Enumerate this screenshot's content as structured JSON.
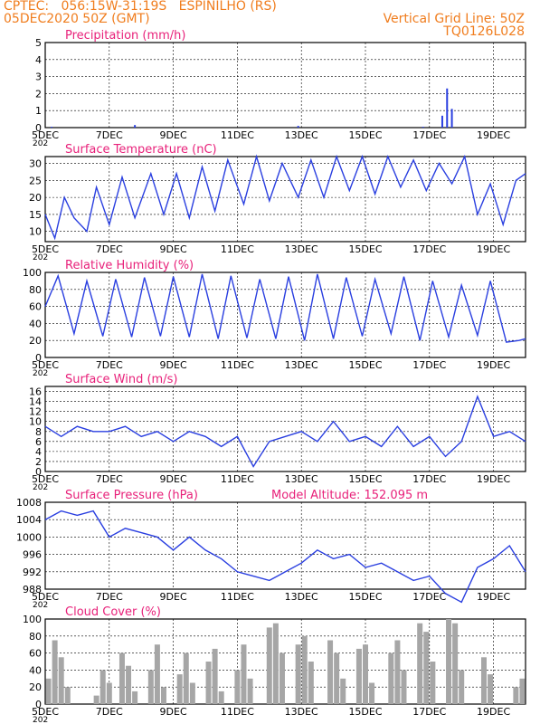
{
  "header": {
    "line1": "CPTEC:   056:15W-31:19S   ESPINILHO (RS)",
    "line2": "05DEC2020 50Z (GMT)",
    "right1": "Vertical Grid Line: 50Z",
    "right2": "TQ0126L028"
  },
  "colors": {
    "title": "#e8217a",
    "line": "#2a3fe0",
    "bar": "#a6a6a6",
    "header": "#f07d1e"
  },
  "x_ticks": [
    "5DEC",
    "7DEC",
    "9DEC",
    "11DEC",
    "13DEC",
    "15DEC",
    "17DEC",
    "19DEC"
  ],
  "x_ticks_year": "202",
  "chart_data": [
    {
      "type": "bar",
      "title": "Precipitation (mm/h)",
      "ylim": [
        0,
        5
      ],
      "yticks": [
        0,
        1,
        2,
        3,
        4,
        5
      ],
      "x": [
        0.2,
        2.8,
        7.9,
        11.8,
        12.4,
        12.55,
        12.7
      ],
      "values": [
        0.05,
        0.15,
        0.1,
        0.05,
        0.7,
        2.3,
        1.1
      ]
    },
    {
      "type": "line",
      "title": "Surface Temperature (nC)",
      "ylim": [
        7,
        32
      ],
      "yticks": [
        10,
        15,
        20,
        25,
        30
      ],
      "x": [
        0,
        0.3,
        0.6,
        0.9,
        1.3,
        1.6,
        2.0,
        2.4,
        2.8,
        3.3,
        3.7,
        4.1,
        4.5,
        4.9,
        5.3,
        5.7,
        6.2,
        6.6,
        7.0,
        7.4,
        7.9,
        8.3,
        8.7,
        9.1,
        9.5,
        9.9,
        10.3,
        10.7,
        11.1,
        11.5,
        11.9,
        12.3,
        12.7,
        13.1,
        13.5,
        13.9,
        14.3,
        14.7,
        15.0
      ],
      "values": [
        15,
        8,
        20,
        14,
        10,
        23,
        12,
        26,
        14,
        27,
        15,
        27,
        14,
        29,
        16,
        31,
        18,
        32,
        19,
        30,
        20,
        31,
        20,
        32,
        22,
        32,
        21,
        32,
        23,
        31,
        22,
        30,
        24,
        32,
        15,
        24,
        12,
        25,
        27
      ]
    },
    {
      "type": "line",
      "title": "Relative Humidity (%)",
      "ylim": [
        0,
        100
      ],
      "yticks": [
        0,
        20,
        40,
        60,
        80,
        100
      ],
      "x": [
        0,
        0.4,
        0.9,
        1.3,
        1.8,
        2.2,
        2.7,
        3.1,
        3.6,
        4.0,
        4.5,
        4.9,
        5.4,
        5.8,
        6.3,
        6.7,
        7.2,
        7.6,
        8.1,
        8.5,
        9.0,
        9.4,
        9.9,
        10.3,
        10.8,
        11.2,
        11.7,
        12.1,
        12.6,
        13.0,
        13.5,
        13.9,
        14.4,
        14.8,
        15.0
      ],
      "values": [
        60,
        96,
        28,
        90,
        25,
        92,
        24,
        94,
        25,
        95,
        24,
        98,
        22,
        96,
        23,
        92,
        22,
        95,
        20,
        98,
        22,
        94,
        25,
        92,
        28,
        95,
        20,
        90,
        24,
        85,
        26,
        90,
        18,
        20,
        22
      ]
    },
    {
      "type": "line",
      "title": "Surface Wind (m/s)",
      "ylim": [
        0,
        17
      ],
      "yticks": [
        0,
        2,
        4,
        6,
        8,
        10,
        12,
        14,
        16
      ],
      "x": [
        0,
        0.5,
        1.0,
        1.5,
        2.0,
        2.5,
        3.0,
        3.5,
        4.0,
        4.5,
        5.0,
        5.5,
        6.0,
        6.5,
        7.0,
        7.5,
        8.0,
        8.5,
        9.0,
        9.5,
        10.0,
        10.5,
        11.0,
        11.5,
        12.0,
        12.5,
        13.0,
        13.5,
        14.0,
        14.5,
        15.0
      ],
      "values": [
        9,
        7,
        9,
        8,
        8,
        9,
        7,
        8,
        6,
        8,
        7,
        5,
        7,
        1,
        6,
        7,
        8,
        6,
        10,
        6,
        7,
        5,
        9,
        5,
        7,
        3,
        6,
        15,
        7,
        8,
        6
      ]
    },
    {
      "type": "line",
      "title": "Surface Pressure (hPa)",
      "subtitle": "Model Altitude: 152.095 m",
      "ylim": [
        988,
        1008
      ],
      "yticks": [
        988,
        992,
        996,
        1000,
        1004,
        1008
      ],
      "x": [
        0,
        0.5,
        1.0,
        1.5,
        2.0,
        2.5,
        3.0,
        3.5,
        4.0,
        4.5,
        5.0,
        5.5,
        6.0,
        6.5,
        7.0,
        7.5,
        8.0,
        8.5,
        9.0,
        9.5,
        10.0,
        10.5,
        11.0,
        11.5,
        12.0,
        12.5,
        13.0,
        13.5,
        14.0,
        14.5,
        15.0
      ],
      "values": [
        1004,
        1006,
        1005,
        1006,
        1000,
        1002,
        1001,
        1000,
        997,
        1000,
        997,
        995,
        992,
        991,
        990,
        992,
        994,
        997,
        995,
        996,
        993,
        994,
        992,
        990,
        991,
        987,
        985,
        993,
        995,
        998,
        992
      ]
    },
    {
      "type": "bar",
      "title": "Cloud Cover (%)",
      "ylim": [
        0,
        100
      ],
      "yticks": [
        0,
        20,
        40,
        60,
        80,
        100
      ],
      "x": [
        0.1,
        0.3,
        0.5,
        0.7,
        1.6,
        1.8,
        2.0,
        2.4,
        2.6,
        2.8,
        3.3,
        3.5,
        3.7,
        4.2,
        4.4,
        4.6,
        5.1,
        5.3,
        5.5,
        6.0,
        6.2,
        6.4,
        7.0,
        7.2,
        7.4,
        7.9,
        8.1,
        8.3,
        8.9,
        9.1,
        9.3,
        9.8,
        10.0,
        10.2,
        10.8,
        11.0,
        11.2,
        11.7,
        11.9,
        12.1,
        12.6,
        12.8,
        13.0,
        13.7,
        13.9,
        14.7,
        14.9
      ],
      "values": [
        30,
        75,
        55,
        20,
        10,
        40,
        25,
        60,
        45,
        15,
        40,
        70,
        20,
        35,
        60,
        25,
        50,
        65,
        15,
        40,
        70,
        30,
        90,
        95,
        60,
        70,
        80,
        50,
        75,
        60,
        30,
        65,
        70,
        25,
        60,
        75,
        40,
        95,
        85,
        50,
        100,
        95,
        40,
        55,
        35,
        20,
        30
      ]
    }
  ]
}
